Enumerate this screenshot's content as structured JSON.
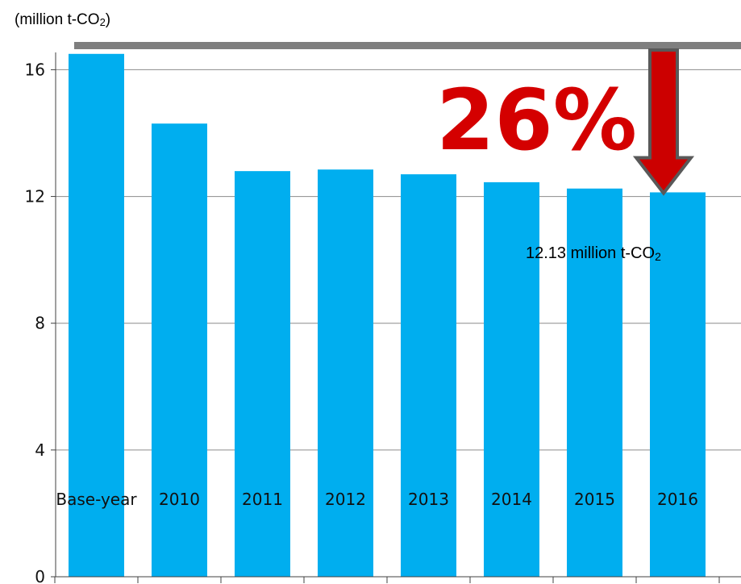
{
  "unit_label": {
    "text": "(million t-CO",
    "sub": "2",
    "close": ")"
  },
  "annotation": {
    "percent": "26%",
    "value_text": "12.13 million t-CO",
    "value_sub": "2"
  },
  "colors": {
    "bar": "#00aeef",
    "baseline_bar": "#7f7f7f",
    "arrow_fill": "#cc0000",
    "arrow_stroke": "#595959",
    "percent_text": "#d40000",
    "grid": "#8c8c8c"
  },
  "chart_data": {
    "type": "bar",
    "title": "",
    "xlabel": "",
    "ylabel": "(million t-CO2)",
    "categories": [
      "Base-year",
      "2010",
      "2011",
      "2012",
      "2013",
      "2014",
      "2015",
      "2016"
    ],
    "values": [
      16.5,
      14.3,
      12.8,
      12.85,
      12.7,
      12.45,
      12.25,
      12.13
    ],
    "ylim": [
      0,
      16.8
    ],
    "yticks": [
      0,
      4,
      8,
      12,
      16
    ],
    "grid": true,
    "legend": "none",
    "annotations": [
      "26%",
      "12.13 million t-CO2"
    ]
  }
}
